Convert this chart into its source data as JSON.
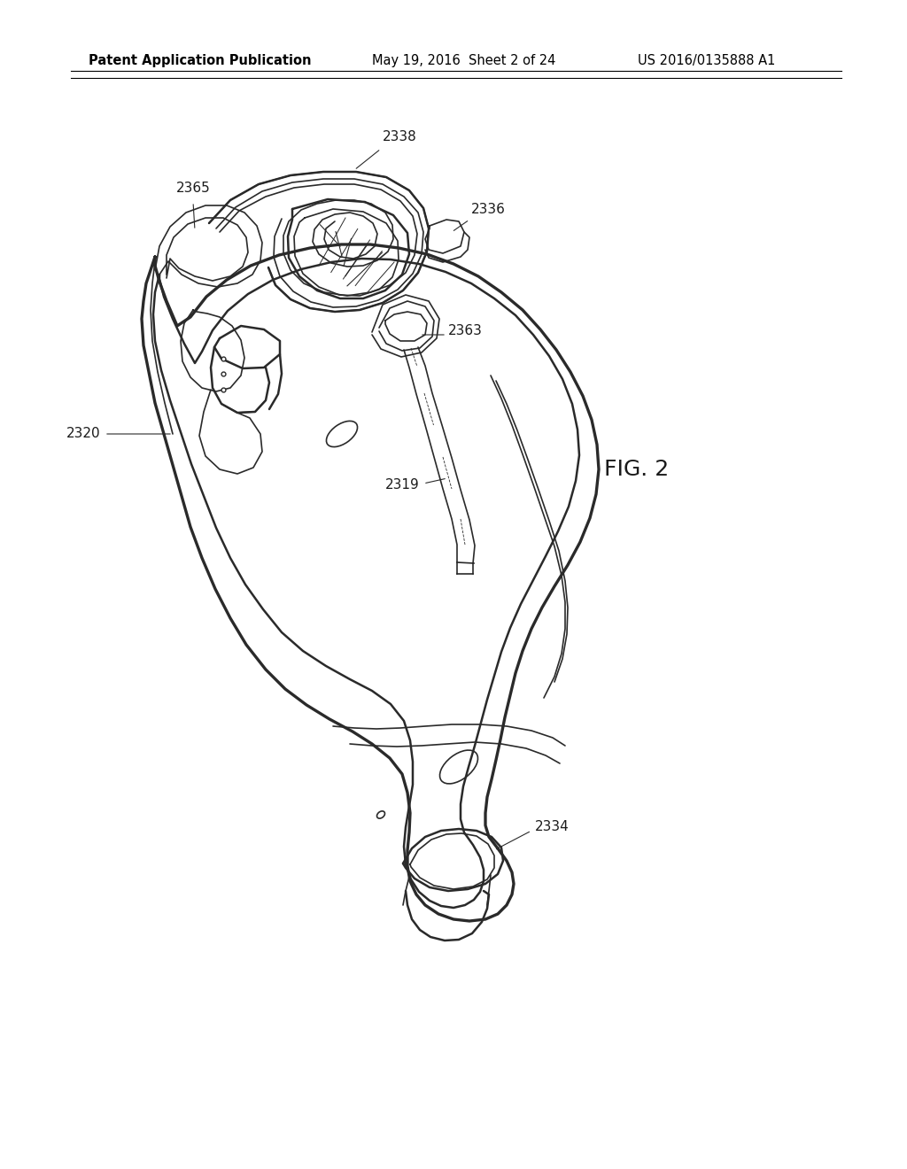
{
  "bg_color": "#ffffff",
  "header_left": "Patent Application Publication",
  "header_mid": "May 19, 2016  Sheet 2 of 24",
  "header_right": "US 2016/0135888 A1",
  "fig_label": "FIG. 2",
  "line_color": "#2a2a2a",
  "label_color": "#1a1a1a",
  "header_fontsize": 10.5,
  "label_fontsize": 11,
  "fig_label_fontsize": 18
}
